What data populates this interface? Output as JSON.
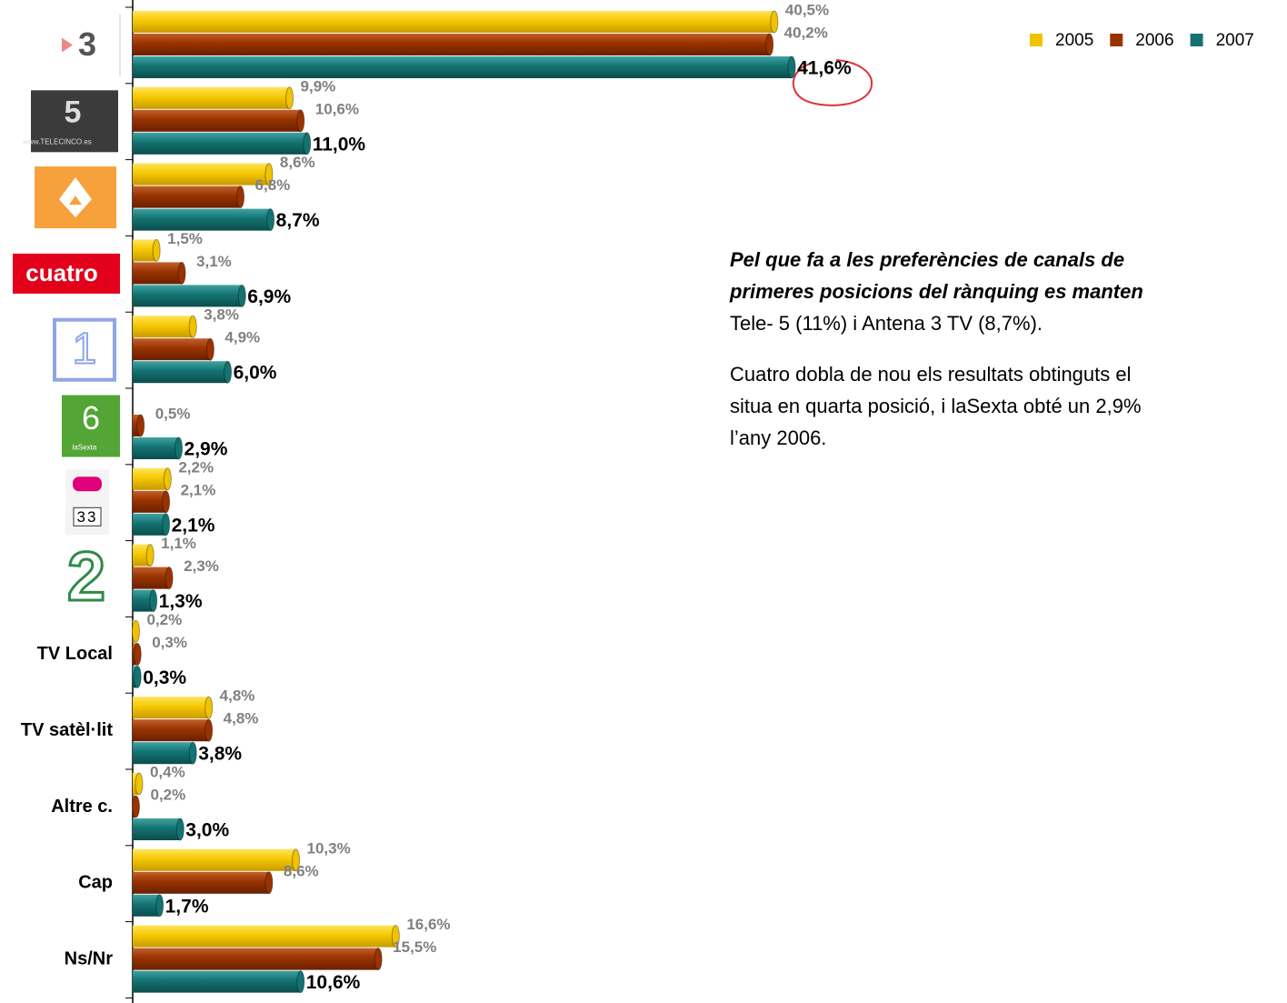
{
  "chart_data": {
    "type": "bar",
    "categories": [
      null,
      null,
      null,
      null,
      null,
      null,
      null,
      null,
      "TV Local",
      "TV satèl·lit",
      "Altre c.",
      "Cap",
      "Ns/Nr"
    ],
    "logos": [
      [
        "3"
      ],
      [
        "5",
        "www.TELECINCO.es"
      ],
      null,
      [
        "cuatro"
      ],
      [
        "1"
      ],
      [
        "6",
        "laSexta"
      ],
      [
        "33"
      ],
      [
        "2"
      ]
    ],
    "series": [
      {
        "name": "2005",
        "color": "#f2c200",
        "values": [
          40.5,
          9.9,
          8.6,
          1.5,
          3.8,
          null,
          2.2,
          1.1,
          0.2,
          4.8,
          0.4,
          10.3,
          16.6
        ],
        "value_labels": [
          "40,5%",
          "9,9%",
          "8,6%",
          "1,5%",
          "3,8%",
          null,
          "2,2%",
          "1,1%",
          "0,2%",
          "4,8%",
          "0,4%",
          "10,3%",
          "16,6%"
        ]
      },
      {
        "name": "2006",
        "color": "#993300",
        "values": [
          40.2,
          10.6,
          6.8,
          3.1,
          4.9,
          0.5,
          2.1,
          2.3,
          0.3,
          4.8,
          0.2,
          8.6,
          15.5
        ],
        "value_labels": [
          "40,2%",
          "10,6%",
          "6,8%",
          "3,1%",
          "4,9%",
          "0,5%",
          "2,1%",
          "2,3%",
          "0,3%",
          "4,8%",
          "0,2%",
          "8,6%",
          "15,5%"
        ]
      },
      {
        "name": "2007",
        "color": "#137372",
        "values": [
          41.6,
          11.0,
          8.7,
          6.9,
          6.0,
          2.9,
          2.1,
          1.3,
          0.3,
          3.8,
          3.0,
          1.7,
          10.6
        ],
        "value_labels": [
          "41,6%",
          "11,0%",
          "8,7%",
          "6,9%",
          "6,0%",
          "2,9%",
          "2,1%",
          "1,3%",
          "0,3%",
          "3,8%",
          "3,0%",
          "1,7%",
          "10,6%"
        ]
      }
    ],
    "legend": "top-right",
    "text_block": {
      "emphasized_lines": [
        "Pel que fa a les preferències de canals de",
        "primeres posicions del rànquing es manten"
      ],
      "lines": [
        "Tele- 5 (11%) i Antena 3 TV (8,7%)."
      ],
      "paragraph2": [
        "Cuatro dobla de nou els resultats obtinguts el",
        "situa en quarta posició, i laSexta obté un 2,9%",
        "l’any 2006."
      ]
    }
  }
}
